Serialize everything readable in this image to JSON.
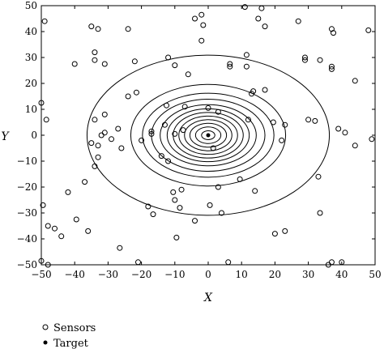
{
  "chart_data": {
    "type": "scatter",
    "title": "",
    "xlabel": "X",
    "ylabel": "Y",
    "xlim": [
      -50,
      50
    ],
    "ylim": [
      -50,
      50
    ],
    "xticks": [
      -50,
      -40,
      -30,
      -20,
      -10,
      0,
      10,
      20,
      30,
      40,
      50
    ],
    "yticks": [
      50,
      40,
      30,
      20,
      10,
      0,
      -10,
      -20,
      -30,
      -40,
      -50
    ],
    "grid": false,
    "legend_position": "bottom-left",
    "contours": {
      "center": [
        0,
        0
      ],
      "semi_axes": [
        [
          2,
          1.7
        ],
        [
          3.8,
          3.2
        ],
        [
          5.5,
          4.6
        ],
        [
          7.1,
          6
        ],
        [
          8.8,
          7.4
        ],
        [
          10.5,
          8.8
        ],
        [
          12.3,
          10.2
        ],
        [
          14.4,
          11.8
        ],
        [
          17,
          13.9
        ],
        [
          19.7,
          16.2
        ],
        [
          23.2,
          19.6
        ],
        [
          36.3,
          30.9
        ]
      ]
    },
    "series": [
      {
        "name": "Sensors",
        "marker": "open-circle",
        "points": [
          [
            -49,
            44
          ],
          [
            -40,
            27.5
          ],
          [
            -35,
            42
          ],
          [
            -33,
            41
          ],
          [
            -34,
            32
          ],
          [
            -34,
            29
          ],
          [
            -31,
            27.5
          ],
          [
            -24,
            41
          ],
          [
            -4,
            45
          ],
          [
            -2,
            46.5
          ],
          [
            -1.5,
            42.5
          ],
          [
            -2,
            36.5
          ],
          [
            11,
            49.5
          ],
          [
            16,
            49
          ],
          [
            15,
            45
          ],
          [
            17,
            42
          ],
          [
            27,
            44
          ],
          [
            37,
            41
          ],
          [
            37.5,
            39.5
          ],
          [
            48,
            40.5
          ],
          [
            -12,
            30
          ],
          [
            -10,
            27
          ],
          [
            -22,
            28.5
          ],
          [
            -6,
            23.5
          ],
          [
            6.5,
            27.5
          ],
          [
            6.5,
            26.5
          ],
          [
            11.5,
            31
          ],
          [
            11.5,
            26.5
          ],
          [
            29,
            30
          ],
          [
            29,
            29
          ],
          [
            33.5,
            29
          ],
          [
            37,
            26.5
          ],
          [
            37,
            25.5
          ],
          [
            44,
            21
          ],
          [
            17,
            17.5
          ],
          [
            13.5,
            17
          ],
          [
            13,
            16
          ],
          [
            -24,
            15
          ],
          [
            -21.5,
            16.5
          ],
          [
            -12.5,
            11.5
          ],
          [
            -7,
            11
          ],
          [
            -50,
            12.5
          ],
          [
            -48.5,
            6
          ],
          [
            -31,
            8
          ],
          [
            -34,
            6
          ],
          [
            -27,
            2.5
          ],
          [
            -31,
            1
          ],
          [
            -32,
            0
          ],
          [
            -20,
            -2
          ],
          [
            -17,
            1.5
          ],
          [
            -17,
            0.5
          ],
          [
            -33,
            -4
          ],
          [
            -26,
            -5
          ],
          [
            -35,
            -3
          ],
          [
            -34,
            -12
          ],
          [
            -33,
            -8.5
          ],
          [
            -29,
            -1.5
          ],
          [
            3,
            9
          ],
          [
            12,
            6
          ],
          [
            19.5,
            5
          ],
          [
            23,
            4
          ],
          [
            22,
            -2
          ],
          [
            30,
            6
          ],
          [
            32,
            5.5
          ],
          [
            39,
            2.5
          ],
          [
            41,
            1
          ],
          [
            44,
            -4
          ],
          [
            49,
            -1.5
          ],
          [
            0,
            10.5
          ],
          [
            -13,
            4
          ],
          [
            -10,
            0.5
          ],
          [
            -7.5,
            2
          ],
          [
            -12,
            -10
          ],
          [
            -14,
            -8
          ],
          [
            1.5,
            -5
          ],
          [
            9.5,
            -17
          ],
          [
            3,
            -20
          ],
          [
            14,
            -21.5
          ],
          [
            -10.5,
            -22
          ],
          [
            -10,
            -25
          ],
          [
            -8,
            -21
          ],
          [
            -8.5,
            -28
          ],
          [
            -18,
            -27.5
          ],
          [
            -16.5,
            -30.5
          ],
          [
            -4,
            -33
          ],
          [
            0.5,
            -27
          ],
          [
            4,
            -30
          ],
          [
            23,
            -37
          ],
          [
            33,
            -16
          ],
          [
            33.5,
            -30
          ],
          [
            20,
            -38
          ],
          [
            -37,
            -18
          ],
          [
            -42,
            -22
          ],
          [
            -49.5,
            -27
          ],
          [
            -48,
            -35
          ],
          [
            -46,
            -36
          ],
          [
            -44,
            -39
          ],
          [
            -50,
            -48.5
          ],
          [
            -48,
            -50
          ],
          [
            -26.5,
            -43.5
          ],
          [
            -36,
            -37
          ],
          [
            -39.5,
            -32.5
          ],
          [
            -21,
            -49
          ],
          [
            -9.5,
            -39.5
          ],
          [
            6,
            -49
          ],
          [
            36,
            -50
          ],
          [
            37,
            -49
          ],
          [
            40,
            -49
          ]
        ]
      },
      {
        "name": "Target",
        "marker": "filled-dot",
        "points": [
          [
            0,
            0
          ]
        ]
      }
    ],
    "legend": [
      "Sensors",
      "Target"
    ]
  }
}
